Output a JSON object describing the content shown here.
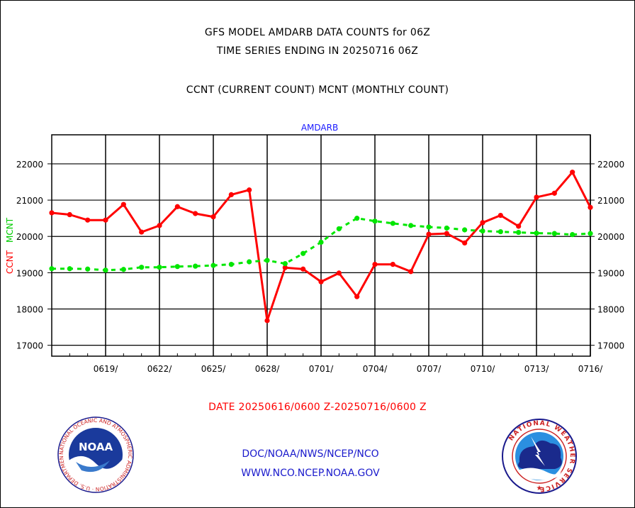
{
  "title_lines": [
    "GFS MODEL AMDARB DATA COUNTS for 06Z",
    "TIME SERIES ENDING IN 20250716 06Z",
    "CCNT (CURRENT COUNT) MCNT (MONTHLY COUNT)"
  ],
  "footer": {
    "date_range": "DATE 20250616/0600 Z-20250716/0600 Z",
    "org_path": "DOC/NOAA/NWS/NCEP/NCO",
    "website": "WWW.NCO.NCEP.NOAA.GOV"
  },
  "logos": {
    "noaa_text": "NOAA",
    "nws_ring_text": "NATIONAL WEATHER SERVICE",
    "noaa_ring_text": "NATIONAL OCEANIC AND ATMOSPHERIC ADMINISTRATION · U.S. DEPARTMENT OF COMMERCE"
  },
  "colors": {
    "ccnt": "#ff0000",
    "mcnt": "#00e600",
    "label_blue": "#1a1aff"
  },
  "chart_data": {
    "type": "line",
    "title": "AMDARB",
    "xlabel": "DATE 20250616/0600 Z-20250716/0600 Z",
    "ylabel_left": [
      "CCNT",
      "MCNT"
    ],
    "ylim": [
      16700,
      22800
    ],
    "yticks": [
      "17000",
      "18000",
      "19000",
      "20000",
      "21000",
      "22000"
    ],
    "yticks_right": [
      "17000",
      "18000",
      "19000",
      "20000",
      "21000",
      "22000"
    ],
    "xlim": [
      0,
      30
    ],
    "xticks": [
      "0619/",
      "0622/",
      "0625/",
      "0628/",
      "0701/",
      "0704/",
      "0707/",
      "0710/",
      "0713/",
      "0716/"
    ],
    "xtick_positions": [
      3,
      6,
      9,
      12,
      15,
      18,
      21,
      24,
      27,
      30
    ],
    "grid": true,
    "x": [
      0,
      1,
      2,
      3,
      4,
      5,
      6,
      7,
      8,
      9,
      10,
      11,
      12,
      13,
      14,
      15,
      16,
      17,
      18,
      19,
      20,
      21,
      22,
      23,
      24,
      25,
      26,
      27,
      28,
      29,
      30
    ],
    "series": [
      {
        "name": "CCNT",
        "color": "#ff0000",
        "style": "solid",
        "values": [
          20650,
          20600,
          20450,
          20450,
          20880,
          20120,
          20300,
          20820,
          20630,
          20540,
          21150,
          21280,
          17680,
          19140,
          19100,
          18750,
          18990,
          18340,
          19230,
          19230,
          19030,
          20060,
          20080,
          19820,
          20380,
          20580,
          20280,
          21080,
          21190,
          21770,
          20800
        ]
      },
      {
        "name": "MCNT",
        "color": "#00e600",
        "style": "dashed",
        "values": [
          19110,
          19110,
          19100,
          19070,
          19090,
          19150,
          19150,
          19170,
          19180,
          19200,
          19230,
          19300,
          19340,
          19250,
          19530,
          19840,
          20210,
          20500,
          20420,
          20360,
          20300,
          20260,
          20230,
          20180,
          20150,
          20130,
          20110,
          20090,
          20080,
          20050,
          20080
        ]
      }
    ]
  }
}
